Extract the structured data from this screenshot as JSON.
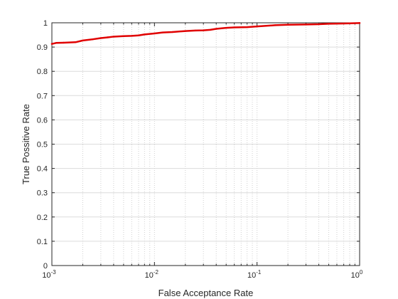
{
  "chart_data": {
    "type": "line",
    "xscale": "log",
    "xlabel": "False Acceptance Rate",
    "ylabel": "True Possitive Rate",
    "xlim": [
      0.001,
      1
    ],
    "ylim": [
      0,
      1
    ],
    "grid": true,
    "x_ticks": [
      {
        "value": 0.001,
        "base": "10",
        "exp": "-3"
      },
      {
        "value": 0.01,
        "base": "10",
        "exp": "-2"
      },
      {
        "value": 0.1,
        "base": "10",
        "exp": "-1"
      },
      {
        "value": 1,
        "base": "10",
        "exp": "0"
      }
    ],
    "y_ticks": [
      {
        "value": 0,
        "label": "0"
      },
      {
        "value": 0.1,
        "label": "0.1"
      },
      {
        "value": 0.2,
        "label": "0.2"
      },
      {
        "value": 0.3,
        "label": "0.3"
      },
      {
        "value": 0.4,
        "label": "0.4"
      },
      {
        "value": 0.5,
        "label": "0.5"
      },
      {
        "value": 0.6,
        "label": "0.6"
      },
      {
        "value": 0.7,
        "label": "0.7"
      },
      {
        "value": 0.8,
        "label": "0.8"
      },
      {
        "value": 0.9,
        "label": "0.9"
      },
      {
        "value": 1,
        "label": "1"
      }
    ],
    "series": [
      {
        "color": "#e00000",
        "x": [
          0.001,
          0.0011,
          0.0013,
          0.0017,
          0.002,
          0.0025,
          0.003,
          0.0035,
          0.004,
          0.005,
          0.006,
          0.007,
          0.008,
          0.01,
          0.012,
          0.015,
          0.02,
          0.025,
          0.03,
          0.035,
          0.04,
          0.05,
          0.06,
          0.08,
          0.1,
          0.15,
          0.2,
          0.3,
          0.4,
          0.5,
          0.7,
          1.0
        ],
        "y": [
          0.913,
          0.917,
          0.918,
          0.92,
          0.927,
          0.932,
          0.937,
          0.94,
          0.943,
          0.945,
          0.946,
          0.948,
          0.952,
          0.956,
          0.96,
          0.962,
          0.966,
          0.968,
          0.969,
          0.971,
          0.975,
          0.979,
          0.981,
          0.982,
          0.985,
          0.99,
          0.992,
          0.993,
          0.994,
          0.996,
          0.997,
          0.999
        ]
      }
    ]
  }
}
